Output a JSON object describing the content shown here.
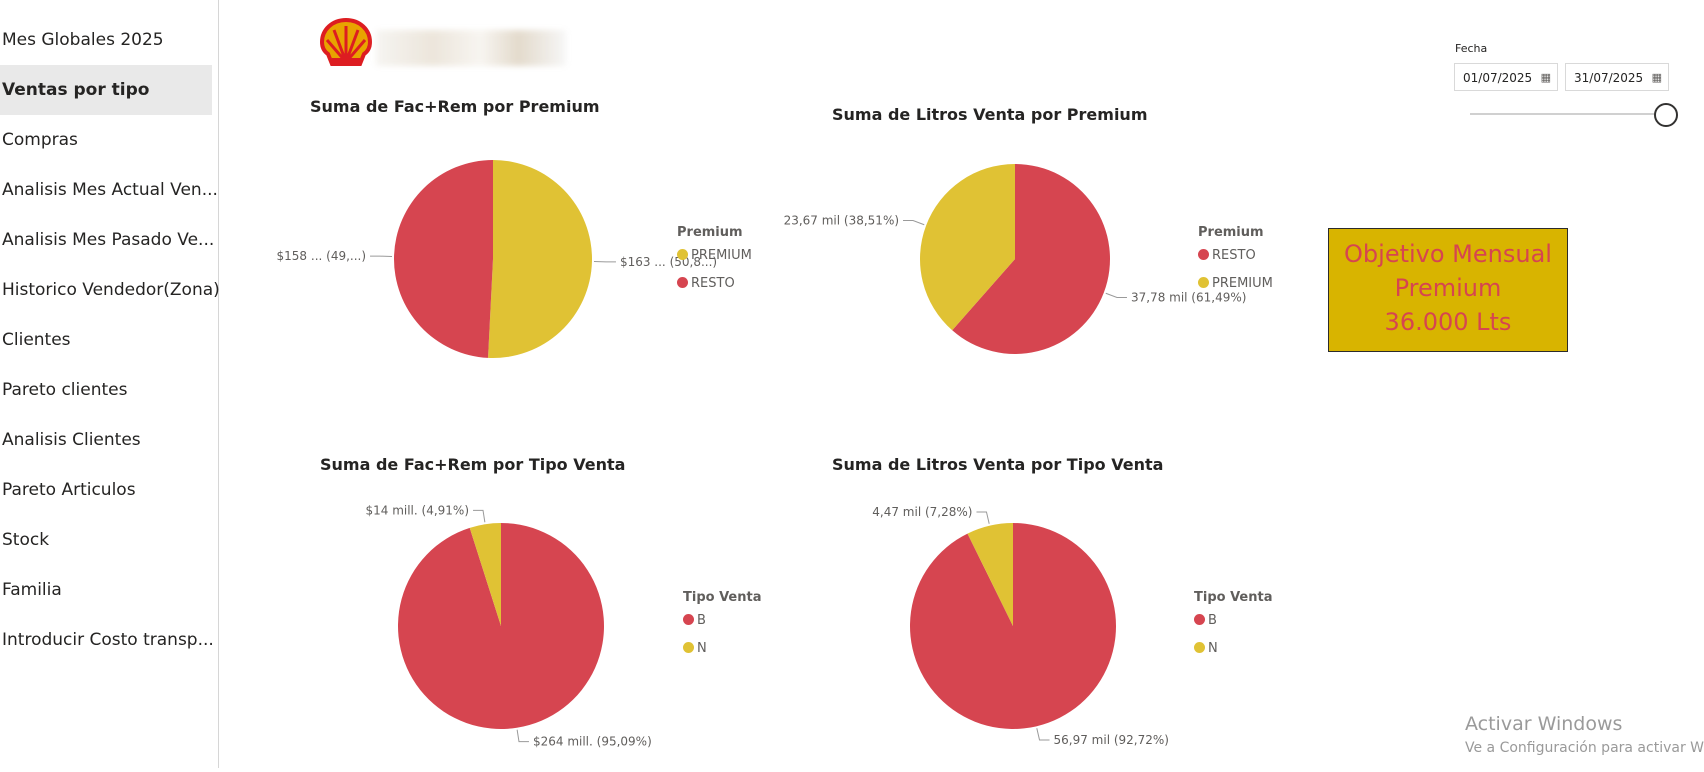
{
  "sidebar": {
    "items": [
      {
        "label": "Mes Globales 2025",
        "active": false
      },
      {
        "label": "Ventas por tipo",
        "active": true
      },
      {
        "label": "Compras",
        "active": false
      },
      {
        "label": "Analisis Mes Actual Ven...",
        "active": false
      },
      {
        "label": "Analisis Mes Pasado Ve...",
        "active": false
      },
      {
        "label": "Historico Vendedor(Zona)",
        "active": false
      },
      {
        "label": "Clientes",
        "active": false
      },
      {
        "label": "Pareto clientes",
        "active": false
      },
      {
        "label": "Analisis Clientes",
        "active": false
      },
      {
        "label": "Pareto Articulos",
        "active": false
      },
      {
        "label": "Stock",
        "active": false
      },
      {
        "label": "Familia",
        "active": false
      },
      {
        "label": "Introducir Costo transp...",
        "active": false
      }
    ]
  },
  "logo": {
    "icon": "shell-logo-icon"
  },
  "date_slicer": {
    "label": "Fecha",
    "start": "01/07/2025",
    "end": "31/07/2025",
    "icon": "calendar-icon"
  },
  "colors": {
    "red": "#d64550",
    "yellow": "#e0c234",
    "card": "#d8b400"
  },
  "objective_card": {
    "line1": "Objetivo Mensual",
    "line2": "Premium",
    "line3": "36.000 Lts"
  },
  "watermark": {
    "line1": "Activar Windows",
    "line2": "Ve a Configuración para activar W"
  },
  "chart_data": [
    {
      "type": "pie",
      "title": "Suma de Fac+Rem por Premium",
      "legend_title": "Premium",
      "slices": [
        {
          "name": "PREMIUM",
          "value": 50.8,
          "label": "$163 ... (50,8...)",
          "color": "#e0c234"
        },
        {
          "name": "RESTO",
          "value": 49.2,
          "label": "$158 ... (49,...)",
          "color": "#d64550"
        }
      ]
    },
    {
      "type": "pie",
      "title": "Suma de Litros Venta por Premium",
      "legend_title": "Premium",
      "slices": [
        {
          "name": "RESTO",
          "value": 61.49,
          "label": "37,78 mil (61,49%)",
          "color": "#d64550"
        },
        {
          "name": "PREMIUM",
          "value": 38.51,
          "label": "23,67 mil (38,51%)",
          "color": "#e0c234"
        }
      ]
    },
    {
      "type": "pie",
      "title": "Suma de Fac+Rem por Tipo Venta",
      "legend_title": "Tipo Venta",
      "slices": [
        {
          "name": "B",
          "value": 95.09,
          "label": "$264 mill. (95,09%)",
          "color": "#d64550"
        },
        {
          "name": "N",
          "value": 4.91,
          "label": "$14 mill. (4,91%)",
          "color": "#e0c234"
        }
      ]
    },
    {
      "type": "pie",
      "title": "Suma de Litros Venta por Tipo Venta",
      "legend_title": "Tipo Venta",
      "slices": [
        {
          "name": "B",
          "value": 92.72,
          "label": "56,97 mil (92,72%)",
          "color": "#d64550"
        },
        {
          "name": "N",
          "value": 7.28,
          "label": "4,47 mil (7,28%)",
          "color": "#e0c234"
        }
      ]
    }
  ]
}
